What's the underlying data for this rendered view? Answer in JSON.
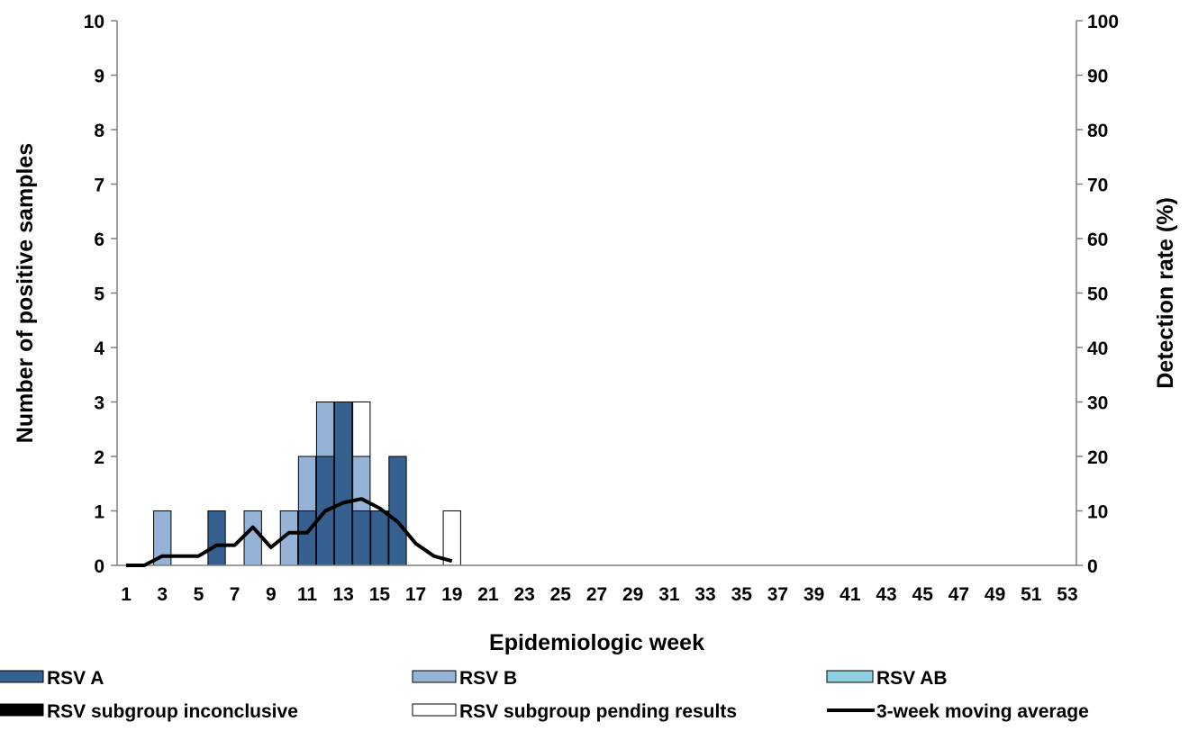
{
  "chart_data": {
    "type": "bar",
    "stacked": true,
    "x": [
      1,
      2,
      3,
      4,
      5,
      6,
      7,
      8,
      9,
      10,
      11,
      12,
      13,
      14,
      15,
      16,
      17,
      18,
      19,
      20,
      21,
      22,
      23,
      24,
      25,
      26,
      27,
      28,
      29,
      30,
      31,
      32,
      33,
      34,
      35,
      36,
      37,
      38,
      39,
      40,
      41,
      42,
      43,
      44,
      45,
      46,
      47,
      48,
      49,
      50,
      51,
      52,
      53
    ],
    "x_tick_labels": [
      "1",
      "3",
      "5",
      "7",
      "9",
      "11",
      "13",
      "15",
      "17",
      "19",
      "21",
      "23",
      "25",
      "27",
      "29",
      "31",
      "33",
      "35",
      "37",
      "39",
      "41",
      "43",
      "45",
      "47",
      "49",
      "51",
      "53"
    ],
    "xlabel": "Epidemiologic week",
    "ylabel": "Number of positive samples",
    "y2label": "Detection rate (%)",
    "ylim": [
      0,
      10
    ],
    "y2lim": [
      0,
      100
    ],
    "y_ticks": [
      "0",
      "1",
      "2",
      "3",
      "4",
      "5",
      "6",
      "7",
      "8",
      "9",
      "10"
    ],
    "y2_ticks": [
      "0",
      "10",
      "20",
      "30",
      "40",
      "50",
      "60",
      "70",
      "80",
      "90",
      "100"
    ],
    "grid": false,
    "legend_position": "bottom",
    "series": [
      {
        "name": "RSV A",
        "color": "#35608f",
        "values": [
          0,
          0,
          0,
          0,
          0,
          1,
          0,
          0,
          0,
          0,
          1,
          2,
          3,
          1,
          1,
          2,
          0,
          0,
          0,
          0,
          0,
          0,
          0,
          0,
          0,
          0,
          0,
          0,
          0,
          0,
          0,
          0,
          0,
          0,
          0,
          0,
          0,
          0,
          0,
          0,
          0,
          0,
          0,
          0,
          0,
          0,
          0,
          0,
          0,
          0,
          0,
          0,
          0
        ]
      },
      {
        "name": "RSV B",
        "color": "#95b3d7",
        "values": [
          0,
          0,
          1,
          0,
          0,
          0,
          0,
          1,
          0,
          1,
          1,
          1,
          0,
          1,
          0,
          0,
          0,
          0,
          0,
          0,
          0,
          0,
          0,
          0,
          0,
          0,
          0,
          0,
          0,
          0,
          0,
          0,
          0,
          0,
          0,
          0,
          0,
          0,
          0,
          0,
          0,
          0,
          0,
          0,
          0,
          0,
          0,
          0,
          0,
          0,
          0,
          0,
          0
        ]
      },
      {
        "name": "RSV AB",
        "color": "#8ecfe0",
        "values": [
          0,
          0,
          0,
          0,
          0,
          0,
          0,
          0,
          0,
          0,
          0,
          0,
          0,
          0,
          0,
          0,
          0,
          0,
          0,
          0,
          0,
          0,
          0,
          0,
          0,
          0,
          0,
          0,
          0,
          0,
          0,
          0,
          0,
          0,
          0,
          0,
          0,
          0,
          0,
          0,
          0,
          0,
          0,
          0,
          0,
          0,
          0,
          0,
          0,
          0,
          0,
          0,
          0
        ]
      },
      {
        "name": "RSV subgroup inconclusive",
        "color": "#000000",
        "values": [
          0,
          0,
          0,
          0,
          0,
          0,
          0,
          0,
          0,
          0,
          0,
          0,
          0,
          0,
          0,
          0,
          0,
          0,
          0,
          0,
          0,
          0,
          0,
          0,
          0,
          0,
          0,
          0,
          0,
          0,
          0,
          0,
          0,
          0,
          0,
          0,
          0,
          0,
          0,
          0,
          0,
          0,
          0,
          0,
          0,
          0,
          0,
          0,
          0,
          0,
          0,
          0,
          0
        ]
      },
      {
        "name": "RSV subgroup pending results",
        "color": "#ffffff",
        "values": [
          0,
          0,
          0,
          0,
          0,
          0,
          0,
          0,
          0,
          0,
          0,
          0,
          0,
          1,
          0,
          0,
          0,
          0,
          1,
          0,
          0,
          0,
          0,
          0,
          0,
          0,
          0,
          0,
          0,
          0,
          0,
          0,
          0,
          0,
          0,
          0,
          0,
          0,
          0,
          0,
          0,
          0,
          0,
          0,
          0,
          0,
          0,
          0,
          0,
          0,
          0,
          0,
          0
        ]
      }
    ],
    "line": {
      "name": "3-week moving average",
      "axis": "right",
      "color": "#000000",
      "x": [
        1,
        2,
        3,
        4,
        5,
        6,
        7,
        8,
        9,
        10,
        11,
        12,
        13,
        14,
        15,
        16,
        17,
        18,
        19
      ],
      "values": [
        0,
        0,
        1.7,
        1.7,
        1.7,
        3.7,
        3.7,
        7,
        3.3,
        6,
        6,
        10,
        11.5,
        12.2,
        10.5,
        8,
        4,
        1.7,
        0.8
      ]
    }
  }
}
